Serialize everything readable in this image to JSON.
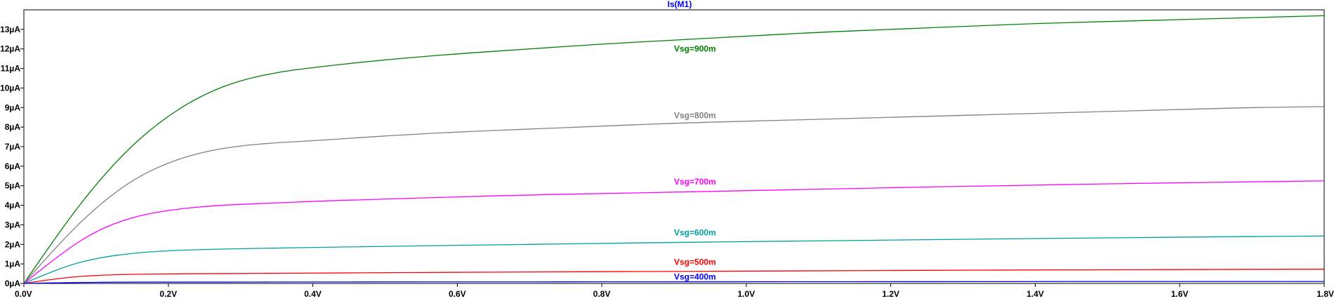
{
  "chart_data": {
    "type": "line",
    "title": "Is(M1)",
    "title_color": "#0000ff",
    "xlim": [
      0,
      1.8
    ],
    "ylim": [
      0,
      14
    ],
    "x_ticks": [
      0,
      0.2,
      0.4,
      0.6,
      0.8,
      1.0,
      1.2,
      1.4,
      1.6,
      1.8
    ],
    "x_tick_labels": [
      "0.0V",
      "0.2V",
      "0.4V",
      "0.6V",
      "0.8V",
      "1.0V",
      "1.2V",
      "1.4V",
      "1.6V",
      "1.8V"
    ],
    "y_ticks": [
      0,
      1,
      2,
      3,
      4,
      5,
      6,
      7,
      8,
      9,
      10,
      11,
      12,
      13
    ],
    "y_tick_labels": [
      "0µA",
      "1µA",
      "2µA",
      "3µA",
      "4µA",
      "5µA",
      "6µA",
      "7µA",
      "8µA",
      "9µA",
      "10µA",
      "11µA",
      "12µA",
      "13µA"
    ],
    "grid": false,
    "x": [
      0,
      0.05,
      0.1,
      0.15,
      0.2,
      0.25,
      0.3,
      0.35,
      0.4,
      0.5,
      0.6,
      0.7,
      0.8,
      0.9,
      1.0,
      1.1,
      1.2,
      1.3,
      1.4,
      1.5,
      1.6,
      1.7,
      1.8
    ],
    "series": [
      {
        "name": "Vsg=900m",
        "color": "#008000",
        "label_x": 0.9,
        "label_y": 12.0,
        "values": [
          0,
          2.7,
          5.1,
          7.1,
          8.6,
          9.7,
          10.4,
          10.8,
          11.05,
          11.45,
          11.75,
          12.0,
          12.25,
          12.45,
          12.65,
          12.85,
          13.0,
          13.15,
          13.3,
          13.4,
          13.5,
          13.6,
          13.7
        ]
      },
      {
        "name": "Vsg=800m",
        "color": "#808080",
        "label_x": 0.9,
        "label_y": 8.6,
        "values": [
          0,
          2.1,
          3.9,
          5.3,
          6.2,
          6.75,
          7.05,
          7.2,
          7.3,
          7.55,
          7.75,
          7.9,
          8.05,
          8.2,
          8.3,
          8.4,
          8.5,
          8.6,
          8.7,
          8.8,
          8.9,
          9.0,
          9.05
        ]
      },
      {
        "name": "Vsg=700m",
        "color": "#ff00ff",
        "label_x": 0.9,
        "label_y": 5.2,
        "values": [
          0,
          1.5,
          2.7,
          3.4,
          3.75,
          3.95,
          4.05,
          4.12,
          4.2,
          4.32,
          4.43,
          4.53,
          4.6,
          4.67,
          4.75,
          4.82,
          4.9,
          4.97,
          5.03,
          5.1,
          5.15,
          5.2,
          5.25
        ]
      },
      {
        "name": "Vsg=600m",
        "color": "#00a0a0",
        "label_x": 0.9,
        "label_y": 2.6,
        "values": [
          0,
          0.8,
          1.3,
          1.55,
          1.68,
          1.74,
          1.78,
          1.81,
          1.84,
          1.9,
          1.95,
          2.0,
          2.05,
          2.1,
          2.14,
          2.18,
          2.22,
          2.26,
          2.3,
          2.33,
          2.37,
          2.4,
          2.43
        ]
      },
      {
        "name": "Vsg=500m",
        "color": "#ff0000",
        "label_x": 0.9,
        "label_y": 1.1,
        "values": [
          0,
          0.28,
          0.42,
          0.47,
          0.49,
          0.5,
          0.51,
          0.52,
          0.53,
          0.55,
          0.57,
          0.59,
          0.6,
          0.62,
          0.63,
          0.65,
          0.66,
          0.68,
          0.69,
          0.7,
          0.71,
          0.72,
          0.73
        ]
      },
      {
        "name": "Vsg=400m",
        "color": "#0000ff",
        "label_x": 0.9,
        "label_y": 0.35,
        "values": [
          0,
          0.04,
          0.06,
          0.07,
          0.07,
          0.07,
          0.07,
          0.075,
          0.075,
          0.08,
          0.08,
          0.08,
          0.085,
          0.085,
          0.09,
          0.09,
          0.09,
          0.095,
          0.095,
          0.1,
          0.1,
          0.1,
          0.1
        ]
      }
    ]
  }
}
